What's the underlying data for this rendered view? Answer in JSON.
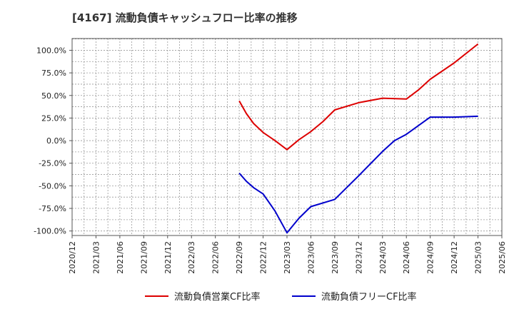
{
  "chart_data": {
    "type": "line",
    "title": "[4167]  流動負債キャッシュフロー比率の推移",
    "xlabel": "",
    "ylabel": "",
    "ylim": [
      -105,
      113
    ],
    "y_ticks": [
      100,
      75,
      50,
      25,
      0,
      -25,
      -50,
      -75,
      -100
    ],
    "y_tick_labels": [
      "100.0%",
      "75.0%",
      "50.0%",
      "25.0%",
      "0.0%",
      "-25.0%",
      "-50.0%",
      "-75.0%",
      "-100.0%"
    ],
    "x_tick_labels": [
      "2020/12",
      "2021/03",
      "2021/06",
      "2021/09",
      "2021/12",
      "2022/03",
      "2022/06",
      "2022/09",
      "2022/12",
      "2023/03",
      "2023/06",
      "2023/09",
      "2023/12",
      "2024/03",
      "2024/06",
      "2024/09",
      "2024/12",
      "2025/03",
      "2025/06"
    ],
    "grid": true,
    "legend_position": "bottom",
    "series": [
      {
        "name": "流動負債営業CF比率",
        "color": "#dd0000",
        "points": [
          {
            "x": 7.0,
            "y": 44
          },
          {
            "x": 7.3,
            "y": 30
          },
          {
            "x": 7.6,
            "y": 19
          },
          {
            "x": 8.0,
            "y": 9
          },
          {
            "x": 8.5,
            "y": 0
          },
          {
            "x": 9.0,
            "y": -10
          },
          {
            "x": 9.5,
            "y": 1
          },
          {
            "x": 10.0,
            "y": 10
          },
          {
            "x": 10.5,
            "y": 21
          },
          {
            "x": 11.0,
            "y": 34
          },
          {
            "x": 12.0,
            "y": 42
          },
          {
            "x": 13.0,
            "y": 47
          },
          {
            "x": 14.0,
            "y": 46
          },
          {
            "x": 14.5,
            "y": 56
          },
          {
            "x": 15.0,
            "y": 68
          },
          {
            "x": 16.0,
            "y": 86
          },
          {
            "x": 17.0,
            "y": 107
          }
        ]
      },
      {
        "name": "流動負債フリーCF比率",
        "color": "#0000cc",
        "points": [
          {
            "x": 7.0,
            "y": -36
          },
          {
            "x": 7.3,
            "y": -45
          },
          {
            "x": 7.6,
            "y": -52
          },
          {
            "x": 8.0,
            "y": -59
          },
          {
            "x": 8.5,
            "y": -78
          },
          {
            "x": 9.0,
            "y": -102
          },
          {
            "x": 9.5,
            "y": -86
          },
          {
            "x": 10.0,
            "y": -73
          },
          {
            "x": 11.0,
            "y": -65
          },
          {
            "x": 12.0,
            "y": -39
          },
          {
            "x": 13.0,
            "y": -12
          },
          {
            "x": 13.5,
            "y": 0
          },
          {
            "x": 14.0,
            "y": 7
          },
          {
            "x": 15.0,
            "y": 26
          },
          {
            "x": 16.0,
            "y": 26
          },
          {
            "x": 17.0,
            "y": 27
          }
        ]
      }
    ]
  }
}
